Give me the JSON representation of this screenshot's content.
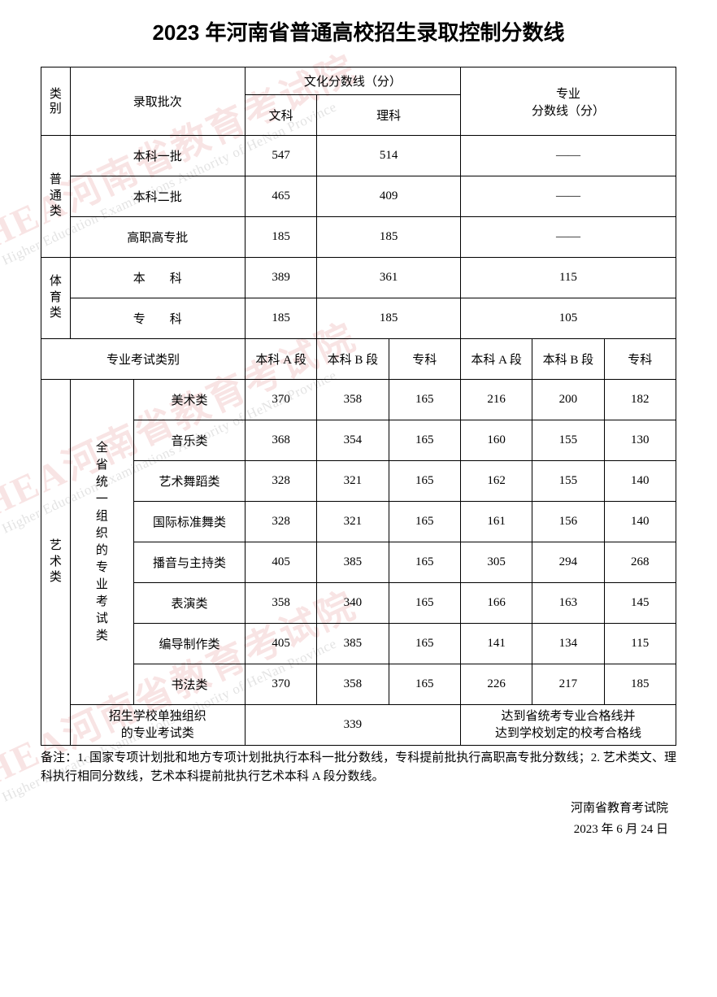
{
  "title": "2023 年河南省普通高校招生录取控制分数线",
  "header": {
    "cat": "类别",
    "batch": "录取批次",
    "culture": "文化分数线（分）",
    "wen": "文科",
    "li": "理科",
    "major": "专业\n分数线（分）"
  },
  "general": {
    "label": "普通类",
    "rows": [
      {
        "name": "本科一批",
        "wen": "547",
        "li": "514",
        "major": "——"
      },
      {
        "name": "本科二批",
        "wen": "465",
        "li": "409",
        "major": "——"
      },
      {
        "name": "高职高专批",
        "wen": "185",
        "li": "185",
        "major": "——"
      }
    ]
  },
  "sports": {
    "label": "体育类",
    "rows": [
      {
        "name": "本　　科",
        "wen": "389",
        "li": "361",
        "major": "115"
      },
      {
        "name": "专　　科",
        "wen": "185",
        "li": "185",
        "major": "105"
      }
    ]
  },
  "art_header": {
    "exam_type": "专业考试类别",
    "bka": "本科 A 段",
    "bkb": "本科 B 段",
    "zk": "专科"
  },
  "art": {
    "label": "艺术类",
    "sub_label": "全省统一组织的专业考试类",
    "rows": [
      {
        "name": "美术类",
        "c_a": "370",
        "c_b": "358",
        "c_z": "165",
        "m_a": "216",
        "m_b": "200",
        "m_z": "182"
      },
      {
        "name": "音乐类",
        "c_a": "368",
        "c_b": "354",
        "c_z": "165",
        "m_a": "160",
        "m_b": "155",
        "m_z": "130"
      },
      {
        "name": "艺术舞蹈类",
        "c_a": "328",
        "c_b": "321",
        "c_z": "165",
        "m_a": "162",
        "m_b": "155",
        "m_z": "140"
      },
      {
        "name": "国际标准舞类",
        "c_a": "328",
        "c_b": "321",
        "c_z": "165",
        "m_a": "161",
        "m_b": "156",
        "m_z": "140"
      },
      {
        "name": "播音与主持类",
        "c_a": "405",
        "c_b": "385",
        "c_z": "165",
        "m_a": "305",
        "m_b": "294",
        "m_z": "268"
      },
      {
        "name": "表演类",
        "c_a": "358",
        "c_b": "340",
        "c_z": "165",
        "m_a": "166",
        "m_b": "163",
        "m_z": "145"
      },
      {
        "name": "编导制作类",
        "c_a": "405",
        "c_b": "385",
        "c_z": "165",
        "m_a": "141",
        "m_b": "134",
        "m_z": "115"
      },
      {
        "name": "书法类",
        "c_a": "370",
        "c_b": "358",
        "c_z": "165",
        "m_a": "226",
        "m_b": "217",
        "m_z": "185"
      }
    ],
    "school_row": {
      "name": "招生学校单独组织\n的专业考试类",
      "culture": "339",
      "major": "达到省统考专业合格线并\n达到学校划定的校考合格线"
    }
  },
  "footnote": "备注：1. 国家专项计划批和地方专项计划批执行本科一批分数线，专科提前批执行高职高专批分数线；2. 艺术类文、理科执行相同分数线，艺术本科提前批执行艺术本科 A 段分数线。",
  "sign_org": "河南省教育考试院",
  "sign_date": "2023 年 6 月 24 日",
  "watermark": {
    "cn": "HEA河南省教育考试院",
    "en": "Higher Education Examinations Authority of HeNan Province"
  },
  "style": {
    "wm_color_cn": "rgba(200,30,30,0.12)",
    "wm_color_en": "rgba(100,100,100,0.18)"
  }
}
